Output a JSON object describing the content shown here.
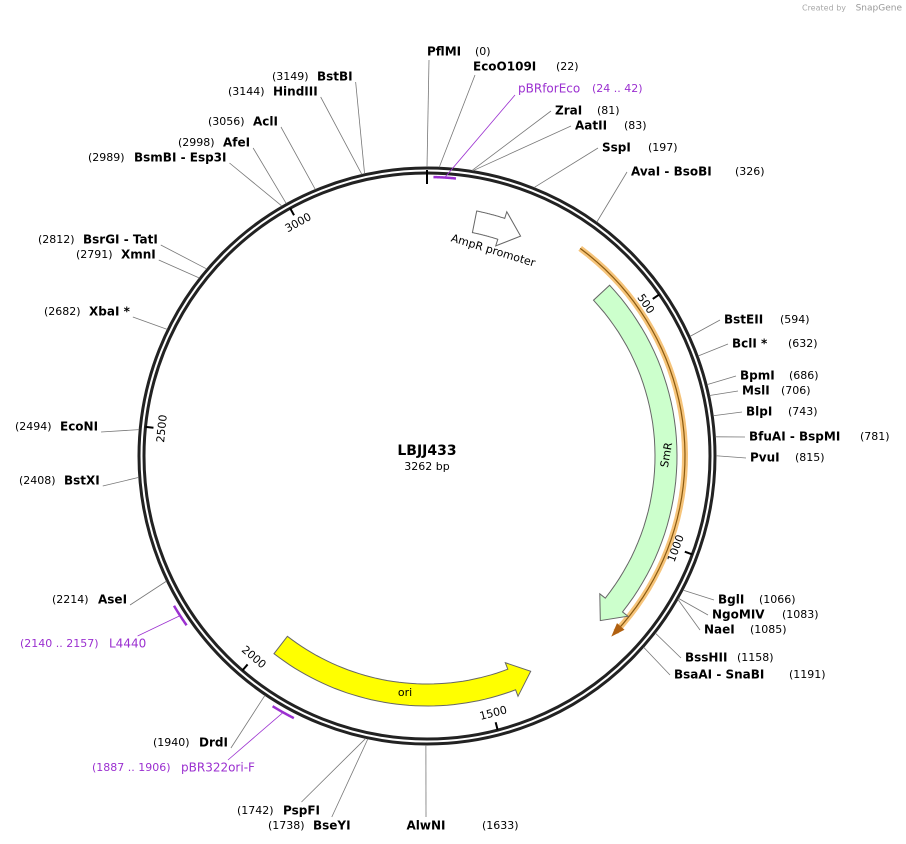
{
  "credit": {
    "prefix": "Created by",
    "brand": "SnapGene"
  },
  "map": {
    "name": "LBJJ433",
    "length": "3262 bp",
    "ticks": [
      500,
      1000,
      1500,
      2000,
      2500,
      3000
    ],
    "features": [
      {
        "label": "AmpR promoter"
      },
      {
        "label": "SmR"
      },
      {
        "label": "ori"
      }
    ],
    "sites": [
      {
        "name": "PflMI",
        "position": "(0)"
      },
      {
        "name": "EcoO109I",
        "position": "(22)"
      },
      {
        "name": "ZraI",
        "position": "(81)"
      },
      {
        "name": "AatII",
        "position": "(83)"
      },
      {
        "name": "SspI",
        "position": "(197)"
      },
      {
        "name": "AvaI  - BsoBI",
        "position": "(326)"
      },
      {
        "name": "BstEII",
        "position": "(594)"
      },
      {
        "name": "BclI *",
        "position": "(632)"
      },
      {
        "name": "BpmI",
        "position": "(686)"
      },
      {
        "name": "MslI",
        "position": "(706)"
      },
      {
        "name": "BlpI",
        "position": "(743)"
      },
      {
        "name": "BfuAI  - BspMI",
        "position": "(781)"
      },
      {
        "name": "PvuI",
        "position": "(815)"
      },
      {
        "name": "BglI",
        "position": "(1066)"
      },
      {
        "name": "NgoMIV",
        "position": "(1083)"
      },
      {
        "name": "NaeI",
        "position": "(1085)"
      },
      {
        "name": "BssHII",
        "position": "(1158)"
      },
      {
        "name": "BsaAI  - SnaBI",
        "position": "(1191)"
      },
      {
        "name": "AlwNI",
        "position": "(1633)"
      },
      {
        "name": "BseYI",
        "position": "(1738)"
      },
      {
        "name": "PspFI",
        "position": "(1742)"
      },
      {
        "name": "DrdI",
        "position": "(1940)"
      },
      {
        "name": "AseI",
        "position": "(2214)"
      },
      {
        "name": "BstXI",
        "position": "(2408)"
      },
      {
        "name": "EcoNI",
        "position": "(2494)"
      },
      {
        "name": "XbaI *",
        "position": "(2682)"
      },
      {
        "name": "XmnI",
        "position": "(2791)"
      },
      {
        "name": "BsrGI  - TatI",
        "position": "(2812)"
      },
      {
        "name": "BsmBI  - Esp3I",
        "position": "(2989)"
      },
      {
        "name": "AfeI",
        "position": "(2998)"
      },
      {
        "name": "AclI",
        "position": "(3056)"
      },
      {
        "name": "HindIII",
        "position": "(3144)"
      },
      {
        "name": "BstBI",
        "position": "(3149)"
      }
    ],
    "primers": [
      {
        "name": "pBRforEco",
        "position": "(24 .. 42)"
      },
      {
        "name": "pBR322ori-F",
        "position": "(1887 .. 1906)"
      },
      {
        "name": "L4440",
        "position": "(2140 .. 2157)"
      }
    ]
  }
}
